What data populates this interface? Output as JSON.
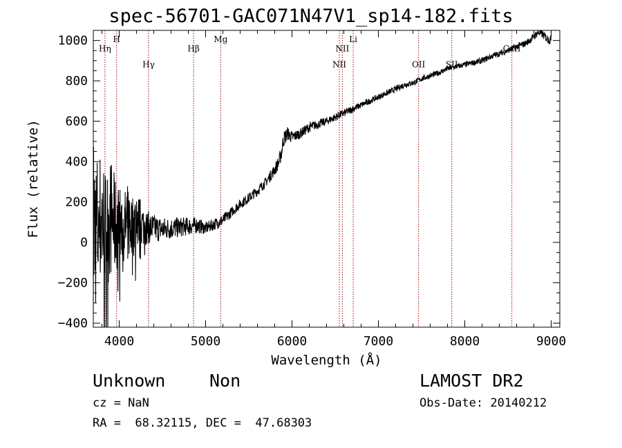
{
  "chart_data": {
    "type": "line",
    "title": "spec-56701-GAC071N47V1_sp14-182.fits",
    "xlabel": "Wavelength (Å)",
    "ylabel": "Flux (relative)",
    "xlim": [
      3700,
      9100
    ],
    "ylim": [
      -420,
      1050
    ],
    "x_ticks": [
      4000,
      5000,
      6000,
      7000,
      8000,
      9000
    ],
    "y_ticks": [
      -400,
      -200,
      0,
      200,
      400,
      600,
      800,
      1000
    ],
    "grid": false,
    "series": [
      {
        "x": [
          3700,
          3750,
          3800,
          3850,
          3900,
          3950,
          4000,
          4050,
          4100,
          4150,
          4200,
          4300,
          4400,
          4500,
          4600,
          4700,
          4800,
          4900,
          5000,
          5100,
          5200,
          5300,
          5400,
          5500,
          5600,
          5700,
          5800,
          5850,
          5880,
          5900,
          5950,
          6000,
          6100,
          6200,
          6300,
          6400,
          6500,
          6600,
          6700,
          6800,
          6900,
          7000,
          7100,
          7200,
          7300,
          7400,
          7500,
          7600,
          7700,
          7800,
          7900,
          8000,
          8100,
          8200,
          8300,
          8400,
          8500,
          8600,
          8700,
          8750,
          8800,
          8850,
          8900,
          8950,
          9000
        ],
        "y": [
          100,
          60,
          120,
          50,
          130,
          80,
          90,
          60,
          100,
          80,
          110,
          75,
          70,
          65,
          70,
          75,
          80,
          85,
          70,
          90,
          110,
          150,
          190,
          220,
          255,
          300,
          360,
          400,
          450,
          510,
          540,
          520,
          540,
          570,
          585,
          600,
          620,
          640,
          660,
          680,
          700,
          720,
          740,
          760,
          780,
          790,
          810,
          825,
          840,
          860,
          870,
          880,
          890,
          900,
          920,
          935,
          950,
          970,
          985,
          1000,
          1020,
          1040,
          1030,
          1010,
          1000
        ],
        "noise_levels": [
          450,
          400,
          350,
          300,
          300,
          250,
          200,
          180,
          200,
          170,
          150,
          90,
          70,
          60,
          55,
          50,
          45,
          40,
          30,
          30,
          30,
          25,
          25,
          25,
          25,
          25,
          30,
          35,
          40,
          40,
          35,
          30,
          25,
          25,
          22,
          20,
          20,
          20,
          18,
          16,
          15,
          15,
          15,
          15,
          15,
          14,
          14,
          14,
          14,
          14,
          14,
          14,
          14,
          15,
          15,
          15,
          15,
          16,
          16,
          18,
          18,
          20,
          20,
          22,
          25
        ]
      }
    ],
    "lines": [
      {
        "wavelength": 3835,
        "label": "Hη",
        "label_y": 960
      },
      {
        "wavelength": 3970,
        "label": "H",
        "label_y": 1005
      },
      {
        "wavelength": 4340,
        "label": "Hγ",
        "label_y": 880
      },
      {
        "wavelength": 4861,
        "label": "Hβ",
        "label_y": 960
      },
      {
        "wavelength": 5175,
        "label": "Mg",
        "label_y": 1005
      },
      {
        "wavelength": 6548,
        "label": "NII",
        "label_y": 880
      },
      {
        "wavelength": 6583,
        "label": "NII",
        "label_y": 960
      },
      {
        "wavelength": 6708,
        "label": "Li",
        "label_y": 1005
      },
      {
        "wavelength": 7465,
        "label": "OII",
        "label_y": 880
      },
      {
        "wavelength": 7850,
        "label": "SII",
        "label_y": 880
      },
      {
        "wavelength": 8545,
        "label": "CaII",
        "label_y": 960
      }
    ],
    "colors": {
      "spectrum": "#000000",
      "line_marker": "#a00000"
    }
  },
  "footer": {
    "class_label": "Unknown",
    "subclass_label": "Non",
    "cz_text": "cz = NaN",
    "radec_text": "RA =  68.32115, DEC =  47.68303",
    "survey_label": "LAMOST DR2",
    "obs_date_text": "Obs-Date: 20140212"
  }
}
